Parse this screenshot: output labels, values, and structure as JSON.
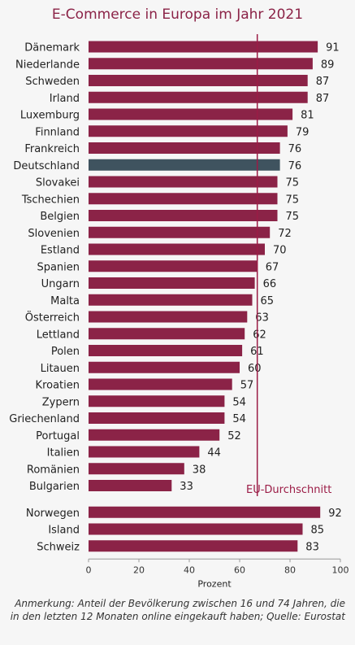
{
  "chart_data": {
    "type": "bar",
    "orientation": "horizontal",
    "title": "E-Commerce in Europa im Jahr 2021",
    "xlabel": "Prozent",
    "ylabel": "",
    "xlim": [
      0,
      100
    ],
    "xticks": [
      0,
      20,
      40,
      60,
      80,
      100
    ],
    "grid": false,
    "colors": {
      "bar": "#8b2347",
      "highlight": "#3f535f",
      "reference": "#9b1c46"
    },
    "groups": [
      {
        "categories": [
          "Dänemark",
          "Niederlande",
          "Schweden",
          "Irland",
          "Luxemburg",
          "Finnland",
          "Frankreich",
          "Deutschland",
          "Slovakei",
          "Tschechien",
          "Belgien",
          "Slovenien",
          "Estland",
          "Spanien",
          "Ungarn",
          "Malta",
          "Österreich",
          "Lettland",
          "Polen",
          "Litauen",
          "Kroatien",
          "Zypern",
          "Griechenland",
          "Portugal",
          "Italien",
          "Romänien",
          "Bulgarien"
        ],
        "values": [
          91,
          89,
          87,
          87,
          81,
          79,
          76,
          76,
          75,
          75,
          75,
          72,
          70,
          67,
          66,
          65,
          63,
          62,
          61,
          60,
          57,
          54,
          54,
          52,
          44,
          38,
          33
        ]
      },
      {
        "categories": [
          "Norwegen",
          "Island",
          "Schweiz"
        ],
        "values": [
          92,
          85,
          83
        ]
      }
    ],
    "highlight": "Deutschland",
    "reference_line": {
      "label": "EU-Durchschnitt",
      "value": 67
    },
    "annotation": "Anmerkung: Anteil der Bevölkerung zwischen 16 und 74 Jahren, die in den letzten 12 Monaten online eingekauft haben; Quelle: Eurostat"
  }
}
